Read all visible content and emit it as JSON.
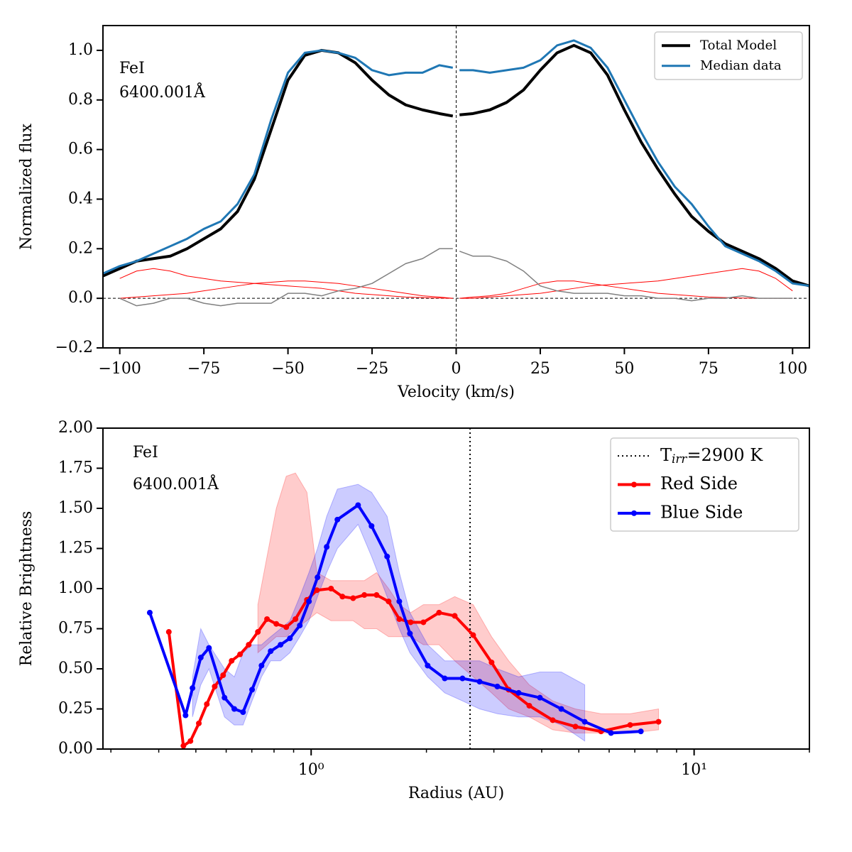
{
  "chart_data": [
    {
      "type": "line",
      "xlabel": "Velocity (km/s)",
      "ylabel": "Normalized flux",
      "annotation": [
        "FeI",
        "6400.001Å"
      ],
      "xlim": [
        -105,
        105
      ],
      "ylim": [
        -0.2,
        1.1
      ],
      "xticks": [
        {
          "value": -100,
          "label": "−100"
        },
        {
          "value": -75,
          "label": "−75"
        },
        {
          "value": -50,
          "label": "−50"
        },
        {
          "value": -25,
          "label": "−25"
        },
        0,
        25,
        50,
        75,
        100
      ],
      "yticks": [
        {
          "value": -0.2,
          "label": "−0.2"
        },
        {
          "value": 0,
          "label": "0.0"
        },
        0.2,
        0.4,
        0.6,
        0.8,
        {
          "value": 1,
          "label": "1.0"
        }
      ],
      "ref_lines": {
        "x": 0,
        "y": 0
      },
      "legend": "upper right",
      "x": [
        -105,
        -100,
        -95,
        -90,
        -85,
        -80,
        -75,
        -70,
        -65,
        -60,
        -55,
        -50,
        -45,
        -40,
        -35,
        -30,
        -25,
        -20,
        -15,
        -10,
        -5,
        -1,
        0,
        1,
        5,
        10,
        15,
        20,
        25,
        30,
        35,
        40,
        45,
        50,
        55,
        60,
        65,
        70,
        75,
        80,
        85,
        90,
        95,
        100,
        105
      ],
      "series": [
        {
          "color": "#ff0000",
          "width": 1,
          "x": [
            -100,
            -95,
            -90,
            -85,
            -80,
            -75,
            -70,
            -65,
            -60,
            -55,
            -50,
            -45,
            -40,
            -35,
            -30,
            -25,
            -20,
            -15,
            -10,
            -5,
            -1
          ],
          "values": [
            0.08,
            0.11,
            0.12,
            0.11,
            0.09,
            0.08,
            0.07,
            0.065,
            0.06,
            0.055,
            0.05,
            0.045,
            0.04,
            0.03,
            0.02,
            0.015,
            0.01,
            0.005,
            0.003,
            0.001,
            0
          ]
        },
        {
          "color": "#ff0000",
          "width": 1,
          "x": [
            -100,
            -95,
            -90,
            -85,
            -80,
            -75,
            -70,
            -65,
            -60,
            -55,
            -50,
            -45,
            -40,
            -35,
            -30,
            -25,
            -20,
            -15,
            -10,
            -5,
            -1
          ],
          "values": [
            0,
            0.005,
            0.01,
            0.015,
            0.02,
            0.03,
            0.04,
            0.05,
            0.06,
            0.065,
            0.07,
            0.07,
            0.065,
            0.06,
            0.05,
            0.04,
            0.03,
            0.02,
            0.01,
            0.005,
            0
          ]
        },
        {
          "color": "#ff0000",
          "width": 1,
          "x": [
            1,
            5,
            10,
            15,
            20,
            25,
            30,
            35,
            40,
            45,
            50,
            55,
            60,
            65,
            70,
            75,
            80,
            85,
            90,
            95,
            100
          ],
          "values": [
            0,
            0.005,
            0.01,
            0.02,
            0.04,
            0.06,
            0.07,
            0.07,
            0.06,
            0.05,
            0.04,
            0.03,
            0.02,
            0.015,
            0.01,
            0.005,
            0.003,
            0.001,
            0,
            0,
            0
          ]
        },
        {
          "color": "#ff0000",
          "width": 1,
          "x": [
            1,
            5,
            10,
            15,
            20,
            25,
            30,
            35,
            40,
            45,
            50,
            55,
            60,
            65,
            70,
            75,
            80,
            85,
            90,
            95,
            100
          ],
          "values": [
            0,
            0,
            0.005,
            0.01,
            0.015,
            0.02,
            0.03,
            0.04,
            0.05,
            0.055,
            0.06,
            0.065,
            0.07,
            0.08,
            0.09,
            0.1,
            0.11,
            0.12,
            0.11,
            0.08,
            0.03
          ]
        },
        {
          "color": "#808080",
          "width": 1.5,
          "values": [
            null,
            0,
            -0.03,
            -0.02,
            0,
            0,
            -0.02,
            -0.03,
            -0.02,
            -0.02,
            -0.02,
            0.02,
            0.02,
            0.01,
            0.03,
            0.04,
            0.06,
            0.1,
            0.14,
            0.16,
            0.2,
            0.2,
            null,
            0.19,
            0.17,
            0.17,
            0.15,
            0.11,
            0.05,
            0.03,
            0.02,
            0.02,
            0.02,
            0.01,
            0.01,
            0,
            0,
            -0.01,
            0,
            0,
            0.01,
            0,
            0,
            0,
            null
          ]
        },
        {
          "name": "Total Model",
          "color": "#000000",
          "width": 4,
          "values": [
            0.09,
            0.12,
            0.15,
            0.16,
            0.17,
            0.2,
            0.24,
            0.28,
            0.35,
            0.48,
            0.68,
            0.88,
            0.98,
            1,
            0.99,
            0.95,
            0.88,
            0.82,
            0.78,
            0.76,
            0.745,
            0.735,
            null,
            0.74,
            0.745,
            0.76,
            0.79,
            0.84,
            0.92,
            0.99,
            1.02,
            0.99,
            0.9,
            0.76,
            0.63,
            0.52,
            0.42,
            0.33,
            0.27,
            0.22,
            0.19,
            0.16,
            0.12,
            0.07,
            0.05
          ]
        },
        {
          "name": "Median data",
          "color": "#1f77b4",
          "width": 3,
          "values": [
            0.1,
            0.13,
            0.15,
            0.18,
            0.21,
            0.24,
            0.28,
            0.31,
            0.38,
            0.5,
            0.72,
            0.91,
            0.99,
            1,
            0.99,
            0.97,
            0.92,
            0.9,
            0.91,
            0.91,
            0.94,
            0.93,
            null,
            0.92,
            0.92,
            0.91,
            0.92,
            0.93,
            0.96,
            1.02,
            1.04,
            1.01,
            0.93,
            0.8,
            0.67,
            0.55,
            0.45,
            0.38,
            0.29,
            0.21,
            0.18,
            0.15,
            0.11,
            0.06,
            0.05
          ]
        }
      ]
    },
    {
      "type": "line",
      "xscale": "log",
      "xlabel": "Radius (AU)",
      "ylabel": "Relative Brightness",
      "annotation": [
        "FeI",
        "6400.001Å"
      ],
      "xlim": [
        0.286,
        20
      ],
      "ylim": [
        0,
        2
      ],
      "xticks": [
        {
          "value": 1,
          "label": "10⁰"
        },
        {
          "value": 10,
          "label": "10¹"
        }
      ],
      "xminorticks": [
        0.3,
        0.4,
        0.5,
        0.6,
        0.7,
        0.8,
        0.9,
        2,
        3,
        4,
        5,
        6,
        7,
        8,
        9,
        20
      ],
      "yticks": [
        {
          "value": 0,
          "label": "0.00"
        },
        0.25,
        {
          "value": 0.5,
          "label": "0.50"
        },
        0.75,
        {
          "value": 1,
          "label": "1.00"
        },
        1.25,
        {
          "value": 1.5,
          "label": "1.50"
        },
        1.75,
        {
          "value": 2,
          "label": "2.00"
        }
      ],
      "vline": {
        "x": 2.6,
        "label": {
          "main": "T",
          "sub": "irr",
          "rest": "=2900 K"
        }
      },
      "legend": "upper right",
      "series": [
        {
          "name": "Red Side",
          "color": "#ff0000",
          "width": 4,
          "marker": true,
          "x": [
            0.425,
            0.464,
            0.484,
            0.509,
            0.534,
            0.56,
            0.589,
            0.62,
            0.652,
            0.687,
            0.726,
            0.767,
            0.811,
            0.861,
            0.91,
            0.975,
            1.035,
            1.127,
            1.207,
            1.287,
            1.377,
            1.482,
            1.593,
            1.699,
            1.819,
            1.964,
            2.158,
            2.371,
            2.649,
            2.959,
            3.28,
            3.712,
            4.274,
            4.899,
            5.715,
            6.808,
            8.075
          ],
          "values": [
            0.73,
            0.02,
            0.05,
            0.16,
            0.28,
            0.39,
            0.46,
            0.55,
            0.59,
            0.65,
            0.73,
            0.81,
            0.78,
            0.76,
            0.81,
            0.93,
            0.99,
            1,
            0.95,
            0.94,
            0.96,
            0.96,
            0.92,
            0.81,
            0.79,
            0.79,
            0.85,
            0.83,
            0.71,
            0.54,
            0.37,
            0.27,
            0.18,
            0.14,
            0.11,
            0.15,
            0.17
          ],
          "low": [
            null,
            null,
            null,
            null,
            null,
            null,
            null,
            null,
            null,
            null,
            0.6,
            0.65,
            0.7,
            0.7,
            0.75,
            0.8,
            0.85,
            0.8,
            0.8,
            0.8,
            0.75,
            0.75,
            0.7,
            0.7,
            0.7,
            0.65,
            0.65,
            0.55,
            0.45,
            0.35,
            0.25,
            0.2,
            0.12,
            0.1,
            0.1,
            0.1,
            0.12
          ],
          "high": [
            null,
            null,
            null,
            null,
            null,
            null,
            null,
            null,
            null,
            null,
            0.9,
            1.2,
            1.5,
            1.7,
            1.72,
            1.6,
            1.1,
            1.05,
            1.05,
            1.05,
            1.05,
            1.1,
            1,
            0.9,
            0.85,
            0.9,
            0.9,
            0.95,
            0.9,
            0.7,
            0.55,
            0.4,
            0.3,
            0.25,
            0.22,
            0.22,
            0.25
          ]
        },
        {
          "name": "Blue Side",
          "color": "#0000ff",
          "width": 4,
          "marker": true,
          "x": [
            0.379,
            0.47,
            0.49,
            0.515,
            0.541,
            0.594,
            0.63,
            0.664,
            0.701,
            0.742,
            0.784,
            0.832,
            0.88,
            0.934,
            0.987,
            1.039,
            1.098,
            1.171,
            1.326,
            1.438,
            1.579,
            1.699,
            1.811,
            2.015,
            2.233,
            2.484,
            2.753,
            3.063,
            3.482,
            3.957,
            4.499,
            5.181,
            6.067,
            7.26
          ],
          "values": [
            0.85,
            0.21,
            0.38,
            0.57,
            0.63,
            0.32,
            0.25,
            0.23,
            0.37,
            0.52,
            0.61,
            0.65,
            0.69,
            0.77,
            0.92,
            1.07,
            1.26,
            1.43,
            1.52,
            1.39,
            1.2,
            0.92,
            0.72,
            0.52,
            0.44,
            0.44,
            0.42,
            0.39,
            0.35,
            0.32,
            0.25,
            0.17,
            0.1,
            0.11
          ],
          "low": [
            null,
            null,
            0.2,
            0.4,
            0.5,
            0.2,
            0.15,
            0.15,
            0.3,
            0.45,
            0.55,
            0.55,
            0.6,
            0.7,
            0.8,
            0.95,
            1.1,
            1.25,
            1.4,
            1.2,
            0.95,
            0.75,
            0.6,
            0.45,
            0.35,
            0.3,
            0.25,
            0.22,
            0.2,
            0.2,
            0.15,
            0.05,
            null,
            null
          ],
          "high": [
            null,
            null,
            0.45,
            0.75,
            0.65,
            0.5,
            0.45,
            0.6,
            0.65,
            0.65,
            0.7,
            0.75,
            0.8,
            0.95,
            1.1,
            1.25,
            1.45,
            1.62,
            1.65,
            1.6,
            1.45,
            1.1,
            0.85,
            0.65,
            0.55,
            0.55,
            0.55,
            0.5,
            0.45,
            0.48,
            0.48,
            0.4,
            null,
            null
          ]
        }
      ]
    }
  ]
}
